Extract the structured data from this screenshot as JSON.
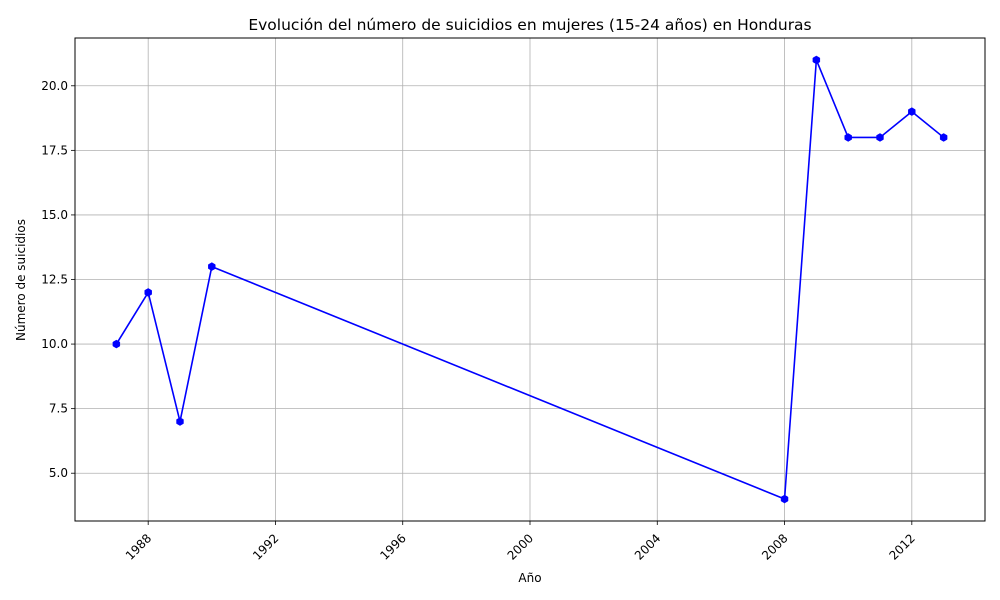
{
  "chart_data": {
    "type": "line",
    "title": "Evolución del número de suicidios en mujeres (15-24 años) en Honduras",
    "xlabel": "Año",
    "ylabel": "Número de suicidios",
    "x": [
      1987,
      1988,
      1989,
      1990,
      2008,
      2009,
      2010,
      2011,
      2012,
      2013
    ],
    "series": [
      {
        "values": [
          10,
          12,
          7,
          13,
          4,
          21,
          18,
          18,
          19,
          18
        ],
        "color": "#0000ff",
        "marker": "hexagon"
      }
    ],
    "xlim": [
      1985.7,
      2014.3
    ],
    "ylim": [
      3.15,
      21.85
    ],
    "xticks": [
      1988,
      1992,
      1996,
      2000,
      2004,
      2008,
      2012
    ],
    "xtick_labels": [
      "1988",
      "1992",
      "1996",
      "2000",
      "2004",
      "2008",
      "2012"
    ],
    "xtick_rotation": "45°",
    "yticks": [
      5.0,
      7.5,
      10.0,
      12.5,
      15.0,
      17.5,
      20.0
    ],
    "ytick_labels": [
      "5.0",
      "7.5",
      "10.0",
      "12.5",
      "15.0",
      "17.5",
      "20.0"
    ],
    "grid": true,
    "legend": "none"
  }
}
